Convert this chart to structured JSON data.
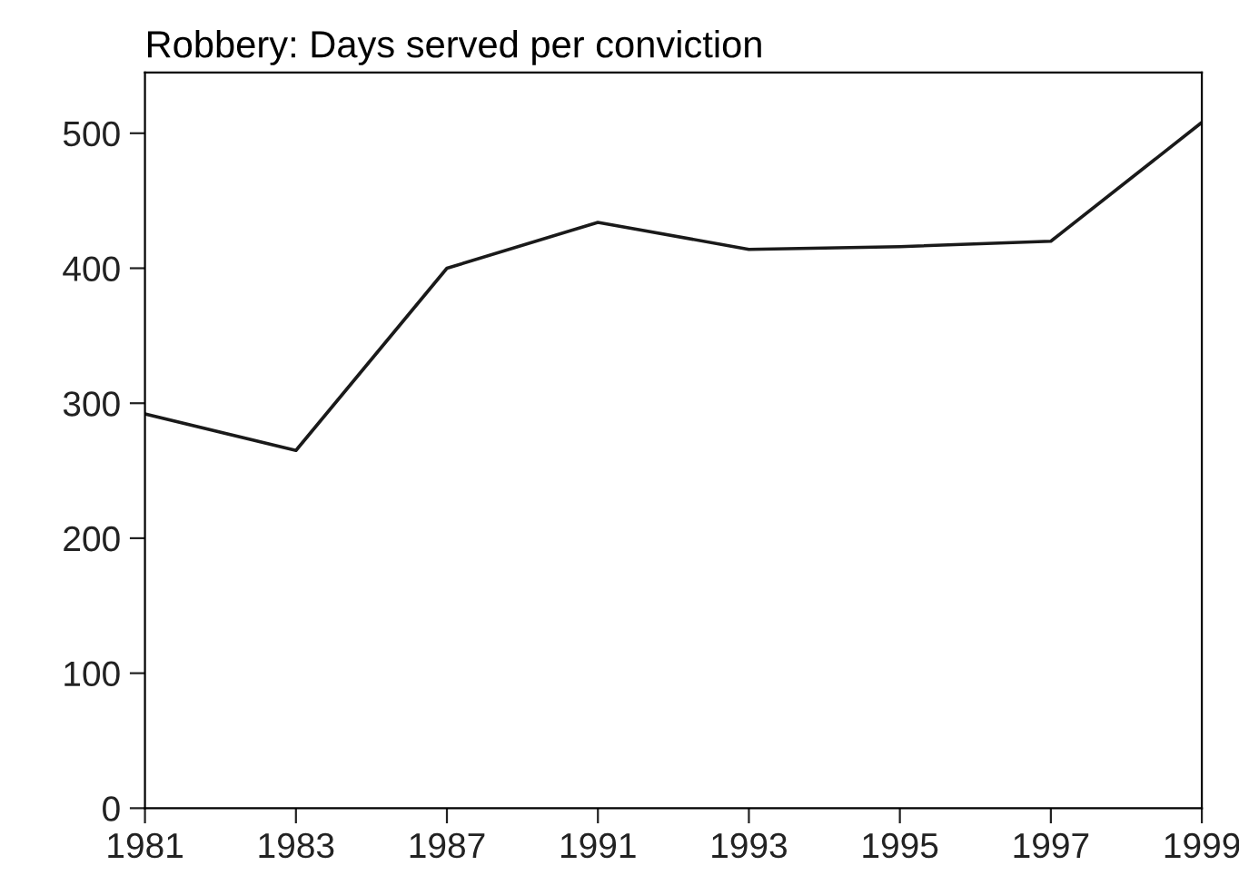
{
  "chart_data": {
    "type": "line",
    "title": "Robbery: Days served per conviction",
    "categories": [
      "1981",
      "1983",
      "1987",
      "1991",
      "1993",
      "1995",
      "1997",
      "1999"
    ],
    "series": [
      {
        "color": "#1a1a1a",
        "values": [
          292,
          265,
          400,
          434,
          414,
          416,
          420,
          508
        ]
      }
    ],
    "ylim": [
      0,
      545
    ],
    "yticks": [
      0,
      100,
      200,
      300,
      400,
      500
    ],
    "grid": false,
    "marker": "none",
    "line_style": "solid"
  }
}
